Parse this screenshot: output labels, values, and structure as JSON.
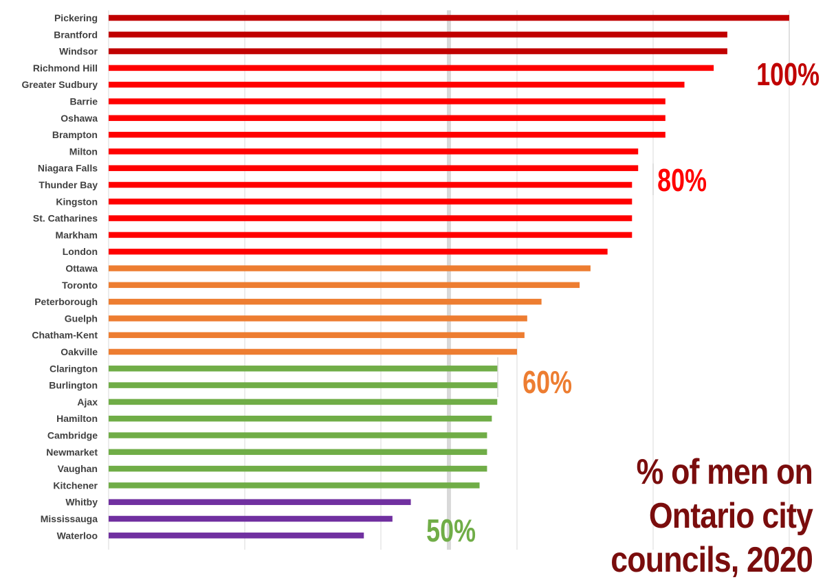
{
  "chart_data": {
    "type": "bar",
    "orientation": "horizontal",
    "title": "% of men on Ontario city councils, 2020",
    "xlabel": "",
    "ylabel": "",
    "xlim": [
      0,
      100
    ],
    "grid": true,
    "categories": [
      "Pickering",
      "Brantford",
      "Windsor",
      "Richmond Hill",
      "Greater Sudbury",
      "Barrie",
      "Oshawa",
      "Brampton",
      "Milton",
      "Niagara Falls",
      "Thunder Bay",
      "Kingston",
      "St. Catharines",
      "Markham",
      "London",
      "Ottawa",
      "Toronto",
      "Peterborough",
      "Guelph",
      "Chatham-Kent",
      "Oakville",
      "Clarington",
      "Burlington",
      "Ajax",
      "Hamilton",
      "Cambridge",
      "Newmarket",
      "Vaughan",
      "Kitchener",
      "Whitby",
      "Mississauga",
      "Waterloo"
    ],
    "values": [
      100,
      90.9,
      90.9,
      88.9,
      84.6,
      81.8,
      81.8,
      81.8,
      77.8,
      77.8,
      76.9,
      76.9,
      76.9,
      76.9,
      73.3,
      70.8,
      69.2,
      63.6,
      61.5,
      61.1,
      60.0,
      57.1,
      57.1,
      57.1,
      56.3,
      55.6,
      55.6,
      55.6,
      54.5,
      44.4,
      41.7,
      37.5
    ],
    "groups": [
      "very-high",
      "very-high",
      "very-high",
      "high",
      "high",
      "high",
      "high",
      "high",
      "high",
      "high",
      "high",
      "high",
      "high",
      "high",
      "high",
      "mid",
      "mid",
      "mid",
      "mid",
      "mid",
      "mid",
      "low",
      "low",
      "low",
      "low",
      "low",
      "low",
      "low",
      "low",
      "minority",
      "minority",
      "minority"
    ],
    "colors": {
      "very-high": "#c00000",
      "high": "#ff0000",
      "mid": "#ed7d31",
      "low": "#70ad47",
      "minority": "#7030a0",
      "title": "#7a0d0d",
      "grid": "#d9d9d9",
      "fifty-line": "#d9d9d9"
    },
    "thresholds": [
      {
        "value": 100,
        "label": "100%",
        "color": "#c00000"
      },
      {
        "value": 80,
        "label": "80%",
        "color": "#ff0000"
      },
      {
        "value": 60,
        "label": "60%",
        "color": "#ed7d31"
      },
      {
        "value": 50,
        "label": "50%",
        "color": "#70ad47"
      }
    ]
  }
}
